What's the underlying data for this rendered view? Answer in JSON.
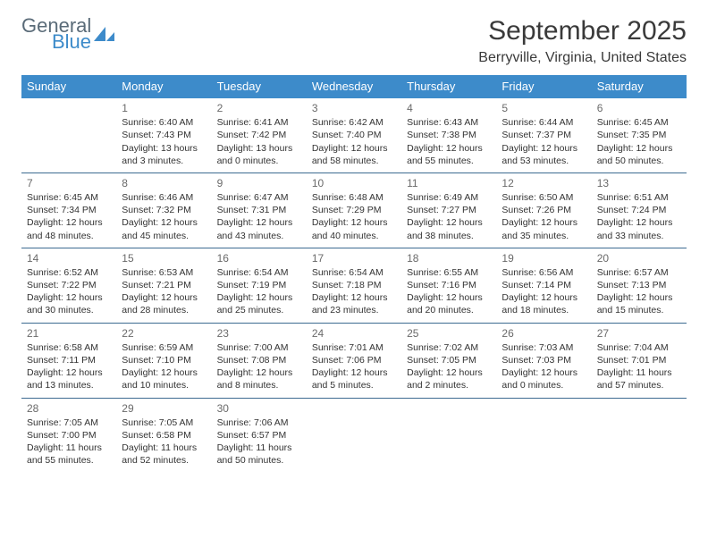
{
  "logo": {
    "general": "General",
    "blue": "Blue",
    "icon_color": "#3d8bca"
  },
  "title": "September 2025",
  "location": "Berryville, Virginia, United States",
  "colors": {
    "header_bg": "#3d8bca",
    "header_text": "#ffffff",
    "divider": "#3d6b91",
    "text": "#333333",
    "daynum": "#6a6a6a",
    "background": "#ffffff"
  },
  "day_labels": [
    "Sunday",
    "Monday",
    "Tuesday",
    "Wednesday",
    "Thursday",
    "Friday",
    "Saturday"
  ],
  "weeks": [
    [
      null,
      {
        "n": "1",
        "sunrise": "Sunrise: 6:40 AM",
        "sunset": "Sunset: 7:43 PM",
        "daylight": "Daylight: 13 hours and 3 minutes."
      },
      {
        "n": "2",
        "sunrise": "Sunrise: 6:41 AM",
        "sunset": "Sunset: 7:42 PM",
        "daylight": "Daylight: 13 hours and 0 minutes."
      },
      {
        "n": "3",
        "sunrise": "Sunrise: 6:42 AM",
        "sunset": "Sunset: 7:40 PM",
        "daylight": "Daylight: 12 hours and 58 minutes."
      },
      {
        "n": "4",
        "sunrise": "Sunrise: 6:43 AM",
        "sunset": "Sunset: 7:38 PM",
        "daylight": "Daylight: 12 hours and 55 minutes."
      },
      {
        "n": "5",
        "sunrise": "Sunrise: 6:44 AM",
        "sunset": "Sunset: 7:37 PM",
        "daylight": "Daylight: 12 hours and 53 minutes."
      },
      {
        "n": "6",
        "sunrise": "Sunrise: 6:45 AM",
        "sunset": "Sunset: 7:35 PM",
        "daylight": "Daylight: 12 hours and 50 minutes."
      }
    ],
    [
      {
        "n": "7",
        "sunrise": "Sunrise: 6:45 AM",
        "sunset": "Sunset: 7:34 PM",
        "daylight": "Daylight: 12 hours and 48 minutes."
      },
      {
        "n": "8",
        "sunrise": "Sunrise: 6:46 AM",
        "sunset": "Sunset: 7:32 PM",
        "daylight": "Daylight: 12 hours and 45 minutes."
      },
      {
        "n": "9",
        "sunrise": "Sunrise: 6:47 AM",
        "sunset": "Sunset: 7:31 PM",
        "daylight": "Daylight: 12 hours and 43 minutes."
      },
      {
        "n": "10",
        "sunrise": "Sunrise: 6:48 AM",
        "sunset": "Sunset: 7:29 PM",
        "daylight": "Daylight: 12 hours and 40 minutes."
      },
      {
        "n": "11",
        "sunrise": "Sunrise: 6:49 AM",
        "sunset": "Sunset: 7:27 PM",
        "daylight": "Daylight: 12 hours and 38 minutes."
      },
      {
        "n": "12",
        "sunrise": "Sunrise: 6:50 AM",
        "sunset": "Sunset: 7:26 PM",
        "daylight": "Daylight: 12 hours and 35 minutes."
      },
      {
        "n": "13",
        "sunrise": "Sunrise: 6:51 AM",
        "sunset": "Sunset: 7:24 PM",
        "daylight": "Daylight: 12 hours and 33 minutes."
      }
    ],
    [
      {
        "n": "14",
        "sunrise": "Sunrise: 6:52 AM",
        "sunset": "Sunset: 7:22 PM",
        "daylight": "Daylight: 12 hours and 30 minutes."
      },
      {
        "n": "15",
        "sunrise": "Sunrise: 6:53 AM",
        "sunset": "Sunset: 7:21 PM",
        "daylight": "Daylight: 12 hours and 28 minutes."
      },
      {
        "n": "16",
        "sunrise": "Sunrise: 6:54 AM",
        "sunset": "Sunset: 7:19 PM",
        "daylight": "Daylight: 12 hours and 25 minutes."
      },
      {
        "n": "17",
        "sunrise": "Sunrise: 6:54 AM",
        "sunset": "Sunset: 7:18 PM",
        "daylight": "Daylight: 12 hours and 23 minutes."
      },
      {
        "n": "18",
        "sunrise": "Sunrise: 6:55 AM",
        "sunset": "Sunset: 7:16 PM",
        "daylight": "Daylight: 12 hours and 20 minutes."
      },
      {
        "n": "19",
        "sunrise": "Sunrise: 6:56 AM",
        "sunset": "Sunset: 7:14 PM",
        "daylight": "Daylight: 12 hours and 18 minutes."
      },
      {
        "n": "20",
        "sunrise": "Sunrise: 6:57 AM",
        "sunset": "Sunset: 7:13 PM",
        "daylight": "Daylight: 12 hours and 15 minutes."
      }
    ],
    [
      {
        "n": "21",
        "sunrise": "Sunrise: 6:58 AM",
        "sunset": "Sunset: 7:11 PM",
        "daylight": "Daylight: 12 hours and 13 minutes."
      },
      {
        "n": "22",
        "sunrise": "Sunrise: 6:59 AM",
        "sunset": "Sunset: 7:10 PM",
        "daylight": "Daylight: 12 hours and 10 minutes."
      },
      {
        "n": "23",
        "sunrise": "Sunrise: 7:00 AM",
        "sunset": "Sunset: 7:08 PM",
        "daylight": "Daylight: 12 hours and 8 minutes."
      },
      {
        "n": "24",
        "sunrise": "Sunrise: 7:01 AM",
        "sunset": "Sunset: 7:06 PM",
        "daylight": "Daylight: 12 hours and 5 minutes."
      },
      {
        "n": "25",
        "sunrise": "Sunrise: 7:02 AM",
        "sunset": "Sunset: 7:05 PM",
        "daylight": "Daylight: 12 hours and 2 minutes."
      },
      {
        "n": "26",
        "sunrise": "Sunrise: 7:03 AM",
        "sunset": "Sunset: 7:03 PM",
        "daylight": "Daylight: 12 hours and 0 minutes."
      },
      {
        "n": "27",
        "sunrise": "Sunrise: 7:04 AM",
        "sunset": "Sunset: 7:01 PM",
        "daylight": "Daylight: 11 hours and 57 minutes."
      }
    ],
    [
      {
        "n": "28",
        "sunrise": "Sunrise: 7:05 AM",
        "sunset": "Sunset: 7:00 PM",
        "daylight": "Daylight: 11 hours and 55 minutes."
      },
      {
        "n": "29",
        "sunrise": "Sunrise: 7:05 AM",
        "sunset": "Sunset: 6:58 PM",
        "daylight": "Daylight: 11 hours and 52 minutes."
      },
      {
        "n": "30",
        "sunrise": "Sunrise: 7:06 AM",
        "sunset": "Sunset: 6:57 PM",
        "daylight": "Daylight: 11 hours and 50 minutes."
      },
      null,
      null,
      null,
      null
    ]
  ]
}
